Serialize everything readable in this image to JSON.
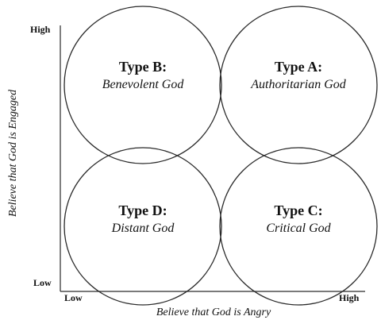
{
  "axes": {
    "y_title": "Believe that God is Engaged",
    "x_title": "Believe that God is Angry",
    "y_high": "High",
    "y_low": "Low",
    "x_low": "Low",
    "x_high": "High"
  },
  "quadrants": {
    "top_left": {
      "label": "Type B:",
      "name": "Benevolent God"
    },
    "top_right": {
      "label": "Type A:",
      "name": "Authoritarian God"
    },
    "bottom_left": {
      "label": "Type D:",
      "name": "Distant God"
    },
    "bottom_right": {
      "label": "Type C:",
      "name": "Critical God"
    }
  },
  "colors": {
    "ink": "#2a2a2a",
    "background": "#ffffff"
  }
}
